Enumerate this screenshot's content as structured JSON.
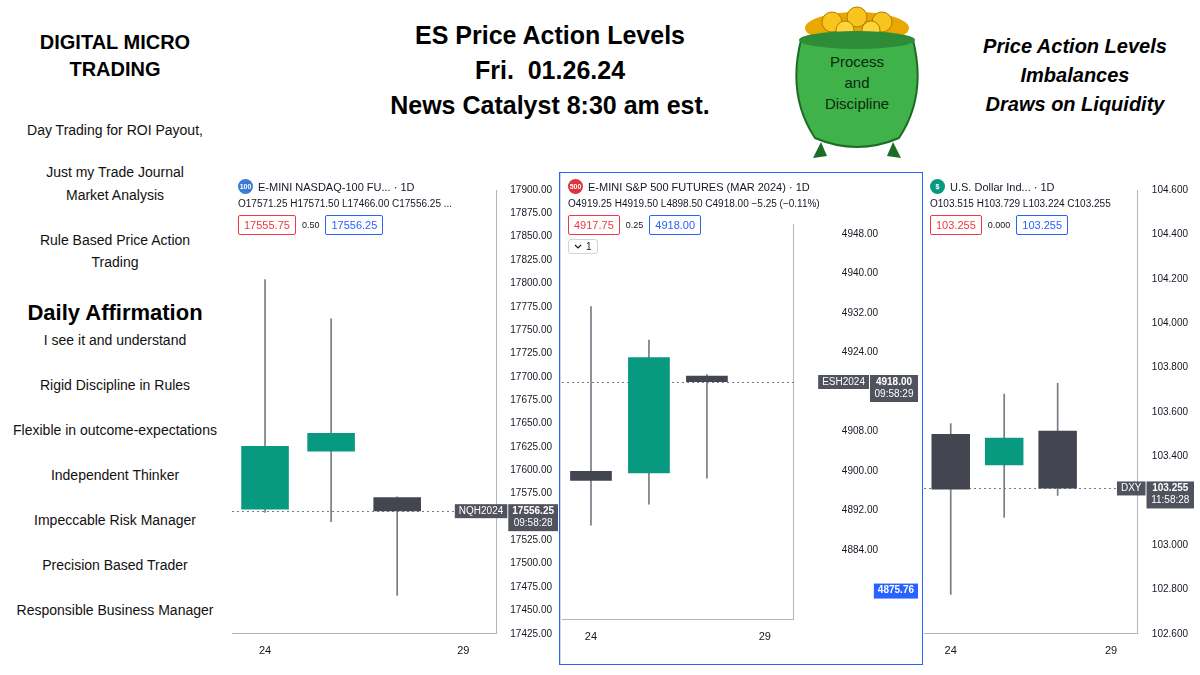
{
  "sidebar": {
    "brand": [
      "DIGITAL MICRO",
      "TRADING"
    ],
    "intro": [
      [
        "Day Trading for ROI Payout,"
      ],
      [
        "Just my Trade Journal",
        "Market Analysis"
      ],
      [
        "Rule Based Price Action",
        "Trading"
      ]
    ],
    "affirmation_title": "Daily Affirmation",
    "affirmations": [
      "I see it and understand",
      "Rigid Discipline in Rules",
      "Flexible in outcome-expectations",
      "Independent Thinker",
      "Impeccable Risk Manager",
      "Precision Based Trader",
      "Responsible Business Manager"
    ]
  },
  "header": {
    "title_lines": [
      "ES Price Action Levels",
      "Fri.  01.26.24",
      "News Catalyst 8:30 am est."
    ],
    "pot_label": [
      "Process",
      "and",
      "Discipline"
    ],
    "topics": [
      "Price Action Levels",
      "Imbalances",
      "Draws on Liquidity"
    ]
  },
  "chart_data": [
    {
      "type": "candlestick",
      "badge": "100",
      "title": "E-MINI NASDAQ-100 FU... · 1D",
      "subtitle": "O17571.25 H17571.50 L17466.00 C17556.25 ...",
      "quote": {
        "bid": "17555.75",
        "spread": "0.50",
        "ask": "17556.25"
      },
      "categories": [
        "24",
        null,
        null,
        "29"
      ],
      "open": [
        17558,
        17620,
        17571.25,
        null
      ],
      "high": [
        17804,
        17762,
        17571.5,
        null
      ],
      "low": [
        17555,
        17545,
        17466,
        null
      ],
      "close": [
        17626,
        17640,
        17556.25,
        null
      ],
      "colors": [
        "#089981",
        "#089981",
        "#434651",
        null
      ],
      "ylim": [
        17425,
        17900
      ],
      "yticks": [
        {
          "value": 17425,
          "label": "17425.00"
        },
        {
          "value": 17450,
          "label": "17450.00"
        },
        {
          "value": 17475,
          "label": "17475.00"
        },
        {
          "value": 17500,
          "label": "17500.00"
        },
        {
          "value": 17525,
          "label": "17525.00"
        },
        {
          "value": 17575,
          "label": "17575.00"
        },
        {
          "value": 17600,
          "label": "17600.00"
        },
        {
          "value": 17625,
          "label": "17625.00"
        },
        {
          "value": 17650,
          "label": "17650.00"
        },
        {
          "value": 17675,
          "label": "17675.00"
        },
        {
          "value": 17700,
          "label": "17700.00"
        },
        {
          "value": 17725,
          "label": "17725.00"
        },
        {
          "value": 17750,
          "label": "17750.00"
        },
        {
          "value": 17775,
          "label": "17775.00"
        },
        {
          "value": 17800,
          "label": "17800.00"
        },
        {
          "value": 17825,
          "label": "17825.00"
        },
        {
          "value": 17850,
          "label": "17850.00"
        },
        {
          "value": 17875,
          "label": "17875.00"
        },
        {
          "value": 17900,
          "label": "17900.00"
        }
      ],
      "grid": false,
      "price_markers": [
        {
          "value": 17556.25,
          "label": "17556.25",
          "symbol": "NQH2024",
          "time": "09:58:28",
          "color": "#50535e"
        }
      ]
    },
    {
      "type": "candlestick",
      "badge": "500",
      "title": "E-MINI S&P 500 FUTURES (MAR 2024) · 1D",
      "subtitle": "O4919.25 H4919.50 L4898.50 C4918.00 −5.25 (−0.11%)",
      "quote": {
        "bid": "4917.75",
        "spread": "0.25",
        "ask": "4918.00"
      },
      "menu": "1",
      "categories": [
        "24",
        null,
        null,
        "29"
      ],
      "open": [
        4900,
        4899.5,
        4919.25,
        null
      ],
      "high": [
        4933.25,
        4926.5,
        4919.5,
        null
      ],
      "low": [
        4889,
        4893.25,
        4898.5,
        null
      ],
      "close": [
        4898,
        4923,
        4918,
        null
      ],
      "colors": [
        "#434651",
        "#089981",
        "#434651",
        null
      ],
      "ylim": [
        4870,
        4950
      ],
      "yticks": [
        {
          "value": 4884,
          "label": "4884.00"
        },
        {
          "value": 4892,
          "label": "4892.00"
        },
        {
          "value": 4900,
          "label": "4900.00"
        },
        {
          "value": 4908,
          "label": "4908.00"
        },
        {
          "value": 4924,
          "label": "4924.00"
        },
        {
          "value": 4932,
          "label": "4932.00"
        },
        {
          "value": 4940,
          "label": "4940.00"
        },
        {
          "value": 4948,
          "label": "4948.00"
        }
      ],
      "grid": false,
      "price_markers": [
        {
          "value": 4918,
          "label": "4918.00",
          "symbol": "ESH2024",
          "time": "09:58:29",
          "color": "#50535e"
        },
        {
          "value": 4875.76,
          "label": "4875.76",
          "color": "#2962ff"
        }
      ]
    },
    {
      "type": "candlestick",
      "badge": "$",
      "title": "U.S. Dollar Ind... · 1D",
      "subtitle": "O103.515 H103.729 L103.224 C103.255",
      "quote": {
        "bid": "103.255",
        "spread": "0.000",
        "ask": "103.255"
      },
      "categories": [
        "24",
        null,
        null,
        "29"
      ],
      "open": [
        103.5,
        103.36,
        103.515,
        null
      ],
      "high": [
        103.547,
        103.68,
        103.729,
        null
      ],
      "low": [
        102.778,
        103.124,
        103.224,
        null
      ],
      "close": [
        103.25,
        103.484,
        103.255,
        null
      ],
      "colors": [
        "#434651",
        "#089981",
        "#434651",
        null
      ],
      "ylim": [
        102.6,
        104.6
      ],
      "yticks": [
        {
          "value": 102.6,
          "label": "102.600"
        },
        {
          "value": 102.8,
          "label": "102.800"
        },
        {
          "value": 103,
          "label": "103.000"
        },
        {
          "value": 103.4,
          "label": "103.400"
        },
        {
          "value": 103.6,
          "label": "103.600"
        },
        {
          "value": 103.8,
          "label": "103.800"
        },
        {
          "value": 104,
          "label": "104.000"
        },
        {
          "value": 104.2,
          "label": "104.200"
        },
        {
          "value": 104.4,
          "label": "104.400"
        },
        {
          "value": 104.6,
          "label": "104.600"
        }
      ],
      "grid": false,
      "price_markers": [
        {
          "value": 103.255,
          "label": "103.255",
          "symbol": "DXY",
          "time": "11:58:28",
          "color": "#50535e"
        }
      ]
    }
  ]
}
